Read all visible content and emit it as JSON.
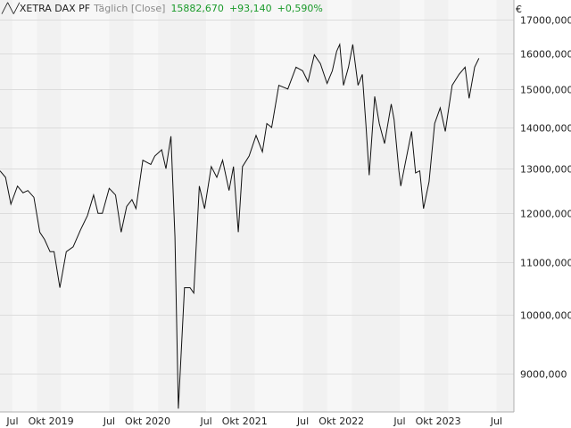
{
  "header": {
    "instrument": "XETRA DAX PF",
    "mode": "Täglich [Close]",
    "last": "15882,670",
    "change": "+93,140",
    "change_pct": "+0,590%"
  },
  "currency": "€",
  "chart_data": {
    "type": "line",
    "scale": "log",
    "ylim": [
      8400,
      17600
    ],
    "yticks": [
      {
        "v": 9000,
        "label": "9000,000"
      },
      {
        "v": 10000,
        "label": "10000,000"
      },
      {
        "v": 11000,
        "label": "11000,000"
      },
      {
        "v": 12000,
        "label": "12000,000"
      },
      {
        "v": 13000,
        "label": "13000,000"
      },
      {
        "v": 14000,
        "label": "14000,000"
      },
      {
        "v": 15000,
        "label": "15000,000"
      },
      {
        "v": 16000,
        "label": "16000,000"
      },
      {
        "v": 17000,
        "label": "17000,000"
      }
    ],
    "xlim": [
      "2018-05-15",
      "2023-09-05"
    ],
    "xticks": [
      {
        "date": "2018-07-01",
        "label": "Jul"
      },
      {
        "date": "2018-10-01",
        "label": "Okt"
      },
      {
        "date": "2019-01-01",
        "label": "2019"
      },
      {
        "date": "2019-07-01",
        "label": "Jul"
      },
      {
        "date": "2019-10-01",
        "label": "Okt"
      },
      {
        "date": "2020-01-01",
        "label": "2020"
      },
      {
        "date": "2020-07-01",
        "label": "Jul"
      },
      {
        "date": "2020-10-01",
        "label": "Okt"
      },
      {
        "date": "2021-01-01",
        "label": "2021"
      },
      {
        "date": "2021-07-01",
        "label": "Jul"
      },
      {
        "date": "2021-10-01",
        "label": "Okt"
      },
      {
        "date": "2022-01-01",
        "label": "2022"
      },
      {
        "date": "2022-07-01",
        "label": "Jul"
      },
      {
        "date": "2022-10-01",
        "label": "Okt"
      },
      {
        "date": "2023-01-01",
        "label": "2023"
      },
      {
        "date": "2023-07-01",
        "label": "Jul"
      }
    ],
    "series": [
      {
        "values": [
          [
            "2018-05-15",
            12950
          ],
          [
            "2018-06-05",
            12800
          ],
          [
            "2018-06-25",
            12200
          ],
          [
            "2018-07-20",
            12600
          ],
          [
            "2018-08-10",
            12450
          ],
          [
            "2018-08-28",
            12500
          ],
          [
            "2018-09-20",
            12350
          ],
          [
            "2018-10-12",
            11600
          ],
          [
            "2018-10-30",
            11450
          ],
          [
            "2018-11-20",
            11200
          ],
          [
            "2018-12-05",
            11200
          ],
          [
            "2018-12-27",
            10500
          ],
          [
            "2019-01-20",
            11200
          ],
          [
            "2019-02-15",
            11300
          ],
          [
            "2019-03-15",
            11650
          ],
          [
            "2019-04-10",
            11950
          ],
          [
            "2019-05-03",
            12400
          ],
          [
            "2019-05-20",
            12000
          ],
          [
            "2019-06-05",
            12000
          ],
          [
            "2019-07-01",
            12550
          ],
          [
            "2019-07-25",
            12400
          ],
          [
            "2019-08-15",
            11600
          ],
          [
            "2019-09-05",
            12150
          ],
          [
            "2019-09-25",
            12300
          ],
          [
            "2019-10-10",
            12100
          ],
          [
            "2019-11-05",
            13200
          ],
          [
            "2019-12-05",
            13100
          ],
          [
            "2019-12-20",
            13300
          ],
          [
            "2020-01-15",
            13450
          ],
          [
            "2020-01-31",
            13000
          ],
          [
            "2020-02-19",
            13780
          ],
          [
            "2020-03-05",
            11500
          ],
          [
            "2020-03-18",
            8450
          ],
          [
            "2020-04-10",
            10500
          ],
          [
            "2020-05-01",
            10500
          ],
          [
            "2020-05-15",
            10400
          ],
          [
            "2020-06-05",
            12600
          ],
          [
            "2020-06-25",
            12100
          ],
          [
            "2020-07-20",
            13050
          ],
          [
            "2020-08-10",
            12800
          ],
          [
            "2020-09-01",
            13200
          ],
          [
            "2020-09-25",
            12500
          ],
          [
            "2020-10-12",
            13050
          ],
          [
            "2020-10-30",
            11600
          ],
          [
            "2020-11-15",
            13050
          ],
          [
            "2020-12-10",
            13300
          ],
          [
            "2021-01-05",
            13800
          ],
          [
            "2021-01-29",
            13400
          ],
          [
            "2021-02-15",
            14100
          ],
          [
            "2021-03-05",
            14000
          ],
          [
            "2021-04-01",
            15100
          ],
          [
            "2021-05-05",
            15000
          ],
          [
            "2021-06-05",
            15600
          ],
          [
            "2021-06-30",
            15500
          ],
          [
            "2021-07-20",
            15200
          ],
          [
            "2021-08-13",
            15950
          ],
          [
            "2021-09-05",
            15700
          ],
          [
            "2021-09-30",
            15150
          ],
          [
            "2021-10-20",
            15500
          ],
          [
            "2021-11-05",
            16050
          ],
          [
            "2021-11-17",
            16250
          ],
          [
            "2021-12-01",
            15100
          ],
          [
            "2021-12-20",
            15600
          ],
          [
            "2022-01-05",
            16250
          ],
          [
            "2022-01-25",
            15100
          ],
          [
            "2022-02-10",
            15400
          ],
          [
            "2022-02-24",
            14050
          ],
          [
            "2022-03-08",
            12850
          ],
          [
            "2022-03-29",
            14800
          ],
          [
            "2022-04-15",
            14100
          ],
          [
            "2022-05-05",
            13600
          ],
          [
            "2022-05-30",
            14600
          ],
          [
            "2022-06-10",
            14200
          ],
          [
            "2022-06-28",
            12950
          ],
          [
            "2022-07-05",
            12600
          ],
          [
            "2022-08-15",
            13900
          ],
          [
            "2022-08-30",
            12900
          ],
          [
            "2022-09-15",
            12950
          ],
          [
            "2022-09-29",
            12100
          ],
          [
            "2022-10-20",
            12700
          ],
          [
            "2022-11-10",
            14100
          ],
          [
            "2022-12-01",
            14500
          ],
          [
            "2022-12-20",
            13900
          ],
          [
            "2023-01-15",
            15100
          ],
          [
            "2023-02-10",
            15400
          ],
          [
            "2023-03-05",
            15600
          ],
          [
            "2023-03-20",
            14750
          ],
          [
            "2023-04-10",
            15600
          ],
          [
            "2023-04-26",
            15850
          ]
        ]
      }
    ],
    "grid": true
  }
}
